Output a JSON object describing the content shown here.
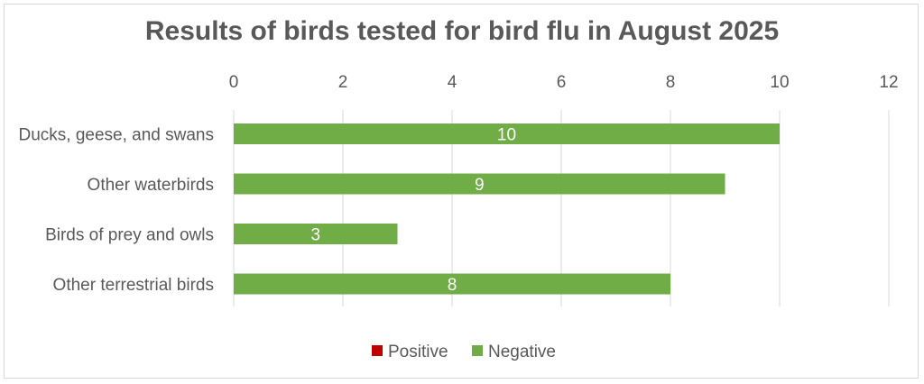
{
  "chart_data": {
    "type": "bar",
    "orientation": "horizontal",
    "title": "Results of birds tested for bird flu in August 2025",
    "xlabel": "",
    "ylabel": "",
    "xlim": [
      0,
      12
    ],
    "xticks": [
      0,
      2,
      4,
      6,
      8,
      10,
      12
    ],
    "grid": true,
    "legend_position": "bottom",
    "categories": [
      "Ducks, geese, and swans",
      "Other waterbirds",
      "Birds of prey and owls",
      "Other terrestrial birds"
    ],
    "series": [
      {
        "name": "Positive",
        "color": "#c00000",
        "values": [
          0,
          0,
          0,
          0
        ]
      },
      {
        "name": "Negative",
        "color": "#70ad47",
        "values": [
          10,
          9,
          3,
          8
        ]
      }
    ]
  }
}
